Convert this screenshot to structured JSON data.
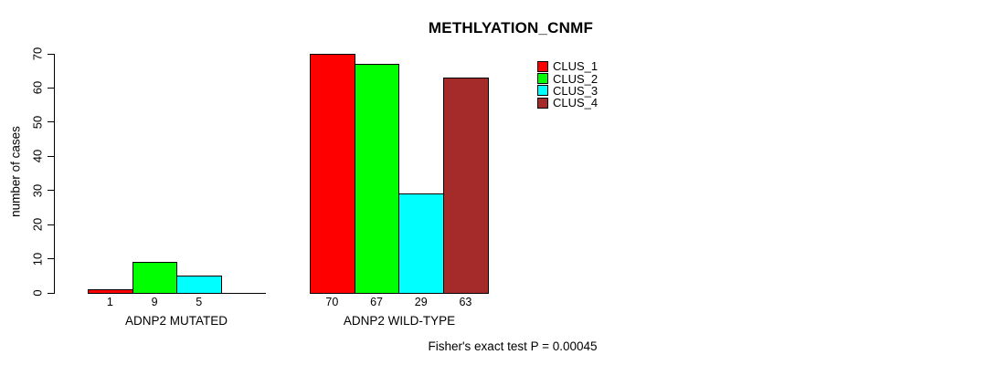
{
  "chart_data": {
    "type": "bar",
    "title": "METHLYATION_CNMF",
    "xlabel": "",
    "ylabel": "number of cases",
    "ylim": [
      0,
      70
    ],
    "yticks": [
      0,
      10,
      20,
      30,
      40,
      50,
      60,
      70
    ],
    "grid": false,
    "legend_position": "top-right",
    "series_names": [
      "CLUS_1",
      "CLUS_2",
      "CLUS_3",
      "CLUS_4"
    ],
    "series_colors": [
      "#FF0000",
      "#00FF00",
      "#00FFFF",
      "#A52A2A"
    ],
    "groups": [
      {
        "label": "ADNP2 MUTATED",
        "values": [
          1,
          9,
          5,
          0
        ],
        "value_labels": [
          "1",
          "9",
          "5",
          ""
        ]
      },
      {
        "label": "ADNP2 WILD-TYPE",
        "values": [
          70,
          67,
          29,
          63
        ],
        "value_labels": [
          "70",
          "67",
          "29",
          "63"
        ]
      }
    ],
    "annotation": "Fisher's exact test P = 0.00045"
  }
}
